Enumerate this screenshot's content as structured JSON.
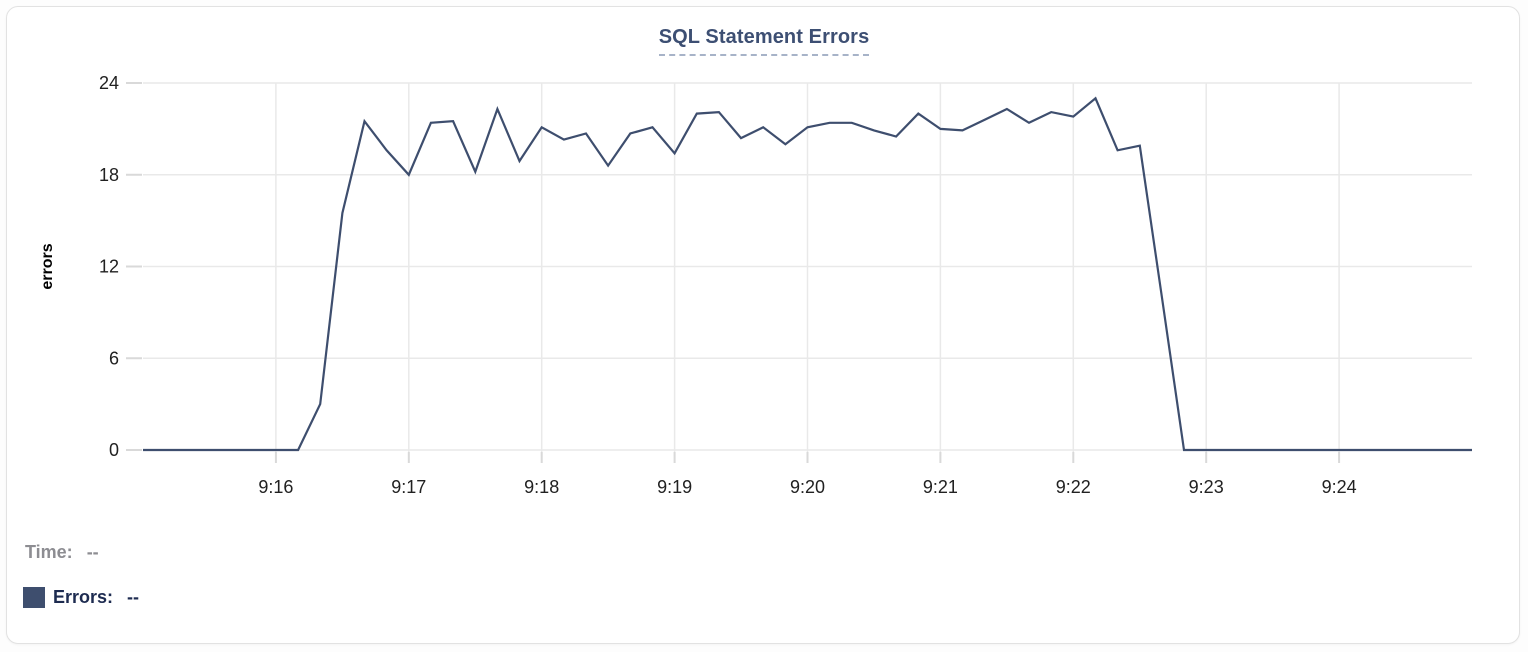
{
  "chart_data": {
    "type": "line",
    "title": "SQL Statement Errors",
    "ylabel": "errors",
    "ylim": [
      0,
      24
    ],
    "yticks": [
      0,
      6,
      12,
      18,
      24
    ],
    "xticks": [
      "9:16",
      "9:17",
      "9:18",
      "9:19",
      "9:20",
      "9:21",
      "9:22",
      "9:23",
      "9:24"
    ],
    "x_start": "9:15:00",
    "x_end": "9:25:00",
    "grid": true,
    "legend_position": "bottom-left",
    "series": [
      {
        "name": "Errors",
        "color": "#3e4e6e",
        "x": [
          "9:15:00",
          "9:15:10",
          "9:15:20",
          "9:15:30",
          "9:15:40",
          "9:15:50",
          "9:16:00",
          "9:16:10",
          "9:16:20",
          "9:16:30",
          "9:16:40",
          "9:16:50",
          "9:17:00",
          "9:17:10",
          "9:17:20",
          "9:17:30",
          "9:17:40",
          "9:17:50",
          "9:18:00",
          "9:18:10",
          "9:18:20",
          "9:18:30",
          "9:18:40",
          "9:18:50",
          "9:19:00",
          "9:19:10",
          "9:19:20",
          "9:19:30",
          "9:19:40",
          "9:19:50",
          "9:20:00",
          "9:20:10",
          "9:20:20",
          "9:20:30",
          "9:20:40",
          "9:20:50",
          "9:21:00",
          "9:21:10",
          "9:21:20",
          "9:21:30",
          "9:21:40",
          "9:21:50",
          "9:22:00",
          "9:22:10",
          "9:22:20",
          "9:22:30",
          "9:22:40",
          "9:22:50",
          "9:23:00",
          "9:23:10",
          "9:23:20",
          "9:23:30",
          "9:23:40",
          "9:23:50",
          "9:24:00",
          "9:24:10",
          "9:24:20",
          "9:24:30",
          "9:24:40",
          "9:24:50",
          "9:25:00"
        ],
        "values": [
          0,
          0,
          0,
          0,
          0,
          0,
          0,
          0,
          3,
          15.5,
          21.5,
          19.6,
          18,
          21.4,
          21.5,
          18.2,
          22.3,
          18.9,
          21.1,
          20.3,
          20.7,
          18.6,
          20.7,
          21.1,
          19.4,
          22,
          22.1,
          20.4,
          21.1,
          20,
          21.1,
          21.4,
          21.4,
          20.9,
          20.5,
          22,
          21,
          20.9,
          21.6,
          22.3,
          21.4,
          22.1,
          21.8,
          23,
          19.6,
          19.9,
          10,
          0,
          0,
          0,
          0,
          0,
          0,
          0,
          0,
          0,
          0,
          0,
          0,
          0,
          0
        ]
      }
    ]
  },
  "readout": {
    "time_label": "Time:",
    "time_value": "--",
    "errors_label": "Errors:",
    "errors_value": "--"
  },
  "colors": {
    "accent": "#3e4e6e",
    "title": "#3d4f73",
    "grid": "#e9e9e9",
    "tick": "#d9d9d9",
    "axis_text": "#212121",
    "muted_text": "#8d8d92",
    "legend_text": "#1d2b50",
    "card_border": "#e2e2e2",
    "background": "#ffffff"
  }
}
